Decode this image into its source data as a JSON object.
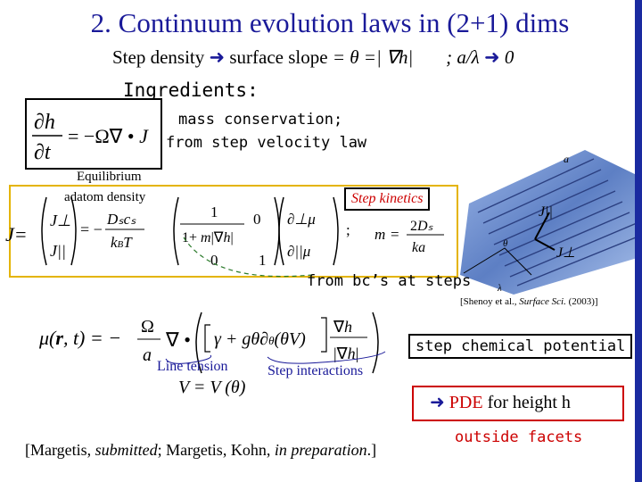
{
  "slide": {
    "title": "2. Continuum evolution laws in (2+1) dims",
    "subtitle": {
      "lhs": "Step density",
      "mid": "surface slope",
      "eq": "= θ =| ∇h|",
      "rhs_sep": "; a/λ",
      "rhs_end": "0"
    },
    "ingredients": "Ingredients:",
    "mass_conservation": "mass conservation;",
    "step_velocity": "from step velocity law",
    "equilibrium": "Equilibrium",
    "adatom_density": "adatom density",
    "j_label": "J=",
    "step_kinetics": "Step kinetics",
    "from_bc": "from bc’s at steps",
    "citation_shenoy_a": "[Shenoy et al., ",
    "citation_shenoy_b": "Surface Sci.",
    "citation_shenoy_c": " (2003)]",
    "step_chem_potential": "step chemical potential",
    "line_tension": "Line tension",
    "step_interactions": "Step interactions",
    "pde_arrow": "",
    "pde_word": "PDE",
    "pde_rest": " for height h",
    "outside_facets": "outside facets",
    "margetis_a": "[Margetis, ",
    "margetis_b": "submitted",
    "margetis_c": "; Margetis, Kohn, ",
    "margetis_d": "in preparation",
    "margetis_e": ".]",
    "figure_labels": {
      "corner": "a",
      "j_parallel": "J||",
      "j_perp": "J⊥",
      "lambda": "λ",
      "angle": "θ"
    }
  },
  "colors": {
    "title": "#1a1a99",
    "accent_red": "#cc0000",
    "box_yellow": "#e4b400",
    "surface_blue": "#6a8fd0"
  }
}
